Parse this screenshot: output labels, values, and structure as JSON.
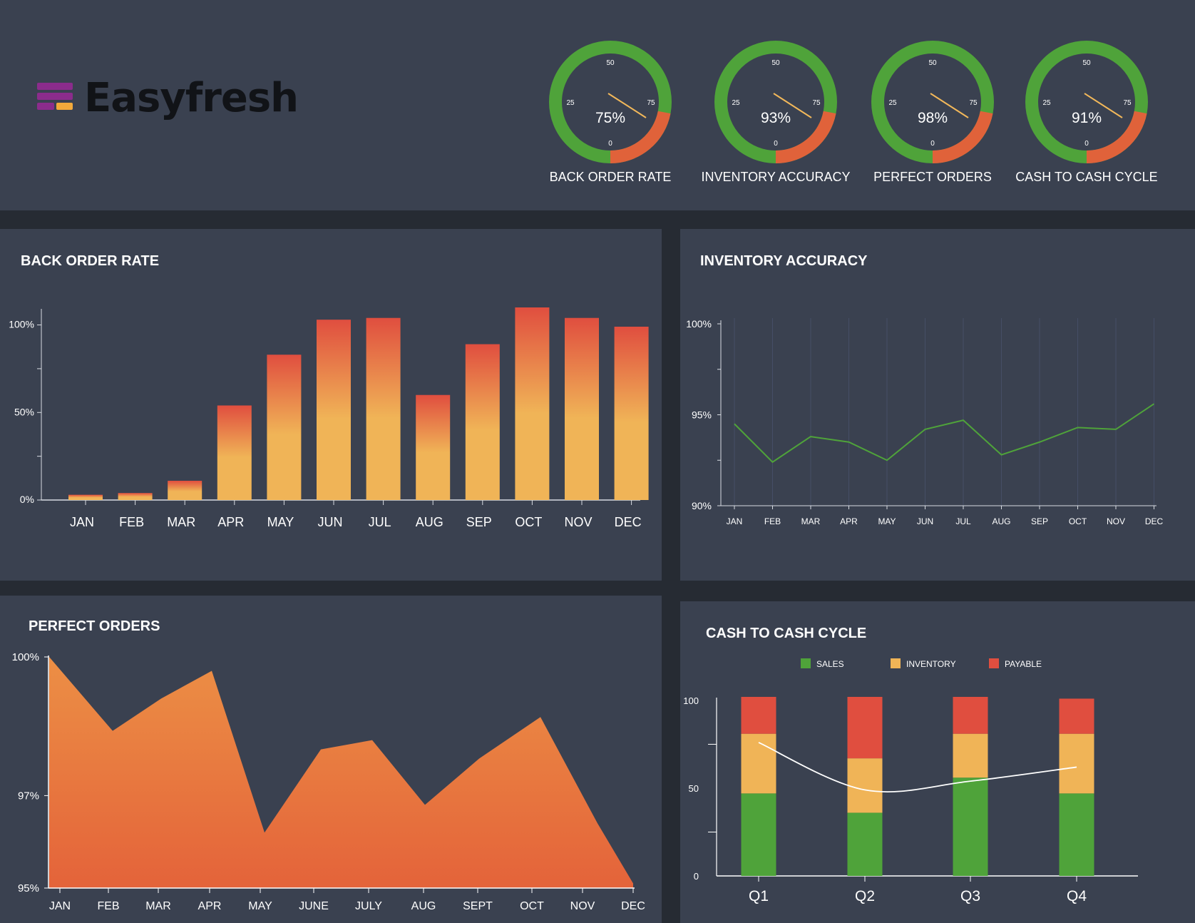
{
  "brand": {
    "name": "Easyfresh",
    "mark_colors": [
      "#8b2c8c",
      "#8b2c8c",
      "#8b2c8c",
      "#f2a93b"
    ]
  },
  "colors": {
    "background": "#262b33",
    "panel": "#3a4150",
    "gauge_green": "#4fa33a",
    "gauge_orange": "#e0623a",
    "needle": "#f2b85a",
    "bar_top": "#e04e3f",
    "bar_bottom": "#f0b457",
    "line": "#4fa33a",
    "area_top": "#ec8f45",
    "area_bottom": "#e4633a",
    "sales": "#4fa33a",
    "inventory": "#f0b457",
    "payable": "#e04e3f"
  },
  "gauges": [
    {
      "id": "back-order-rate",
      "label": "BACK ORDER RATE",
      "value_text": "75%",
      "ticks": [
        "0",
        "25",
        "50",
        "75"
      ],
      "red_fraction": 0.22
    },
    {
      "id": "inventory-accuracy",
      "label": "INVENTORY ACCURACY",
      "value_text": "93%",
      "ticks": [
        "0",
        "25",
        "50",
        "75"
      ],
      "red_fraction": 0.22
    },
    {
      "id": "perfect-orders",
      "label": "PERFECT ORDERS",
      "value_text": "98%",
      "ticks": [
        "0",
        "25",
        "50",
        "75"
      ],
      "red_fraction": 0.22
    },
    {
      "id": "cash-to-cash-cycle",
      "label": "CASH TO CASH CYCLE",
      "value_text": "91%",
      "ticks": [
        "0",
        "25",
        "50",
        "75"
      ],
      "red_fraction": 0.22
    }
  ],
  "panels": {
    "back_order": {
      "title": "BACK ORDER RATE"
    },
    "inventory": {
      "title": "INVENTORY ACCURACY"
    },
    "perfect": {
      "title": "PERFECT ORDERS"
    },
    "cash": {
      "title": "CASH TO CASH CYCLE"
    }
  },
  "chart_data": [
    {
      "id": "back-order-rate",
      "type": "bar",
      "title": "BACK ORDER RATE",
      "categories": [
        "JAN",
        "FEB",
        "MAR",
        "APR",
        "MAY",
        "JUN",
        "JUL",
        "AUG",
        "SEP",
        "OCT",
        "NOV",
        "DEC"
      ],
      "values": [
        3,
        4,
        11,
        54,
        83,
        103,
        104,
        60,
        89,
        110,
        104,
        99
      ],
      "ylim": [
        0,
        110
      ],
      "yticks": [
        0,
        50,
        100
      ],
      "ytick_labels": [
        "0%",
        "50%",
        "100%"
      ],
      "grid": false
    },
    {
      "id": "inventory-accuracy",
      "type": "line",
      "title": "INVENTORY ACCURACY",
      "categories": [
        "JAN",
        "FEB",
        "MAR",
        "APR",
        "MAY",
        "JUN",
        "JUL",
        "AUG",
        "SEP",
        "OCT",
        "NOV",
        "DEC"
      ],
      "values": [
        94.5,
        92.4,
        93.8,
        93.5,
        92.5,
        94.2,
        94.7,
        92.8,
        93.5,
        94.3,
        94.2,
        95.6
      ],
      "ylim": [
        90,
        100
      ],
      "yticks": [
        90,
        95,
        100
      ],
      "ytick_labels": [
        "90%",
        "95%",
        "100%"
      ],
      "grid": true
    },
    {
      "id": "perfect-orders",
      "type": "area",
      "title": "PERFECT ORDERS",
      "categories": [
        "JAN",
        "FEB",
        "MAR",
        "APR",
        "MAY",
        "JUNE",
        "JULY",
        "AUG",
        "SEPT",
        "OCT",
        "NOV",
        "DEC"
      ],
      "values": [
        100,
        98.4,
        99.1,
        99.7,
        96.2,
        98.0,
        98.2,
        96.8,
        97.8,
        98.7,
        96.4,
        95.1
      ],
      "ylim": [
        95,
        100
      ],
      "yticks": [
        95,
        97,
        100
      ],
      "ytick_labels": [
        "95%",
        "97%",
        "100%"
      ],
      "grid": false
    },
    {
      "id": "cash-to-cash-cycle",
      "type": "bar",
      "stacked": true,
      "title": "CASH TO CASH CYCLE",
      "categories": [
        "Q1",
        "Q2",
        "Q3",
        "Q4"
      ],
      "series": [
        {
          "name": "SALES",
          "values": [
            47,
            36,
            56,
            47
          ]
        },
        {
          "name": "INVENTORY",
          "values": [
            34,
            31,
            25,
            34
          ]
        },
        {
          "name": "PAYABLE",
          "values": [
            21,
            35,
            21,
            20
          ]
        }
      ],
      "trend": [
        76,
        49,
        54,
        62
      ],
      "ylim": [
        0,
        102
      ],
      "yticks": [
        0,
        50,
        100
      ],
      "ytick_labels": [
        "0",
        "50",
        "100"
      ],
      "legend": "top",
      "grid": false
    }
  ]
}
